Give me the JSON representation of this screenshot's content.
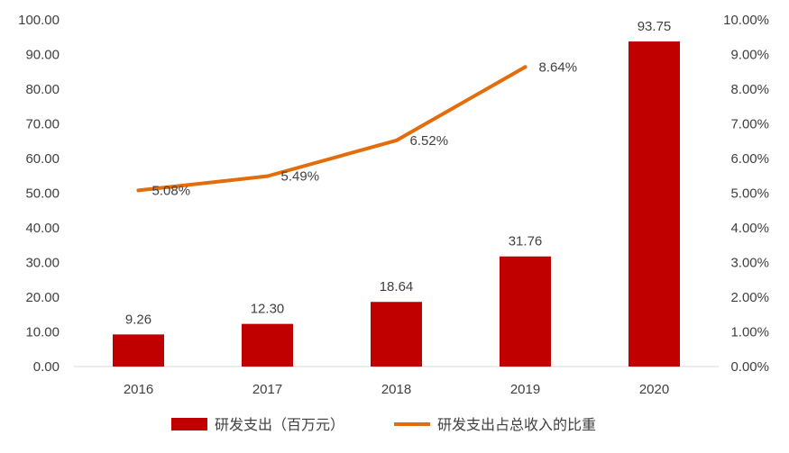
{
  "chart_data": {
    "type": "bar",
    "categories": [
      "2016",
      "2017",
      "2018",
      "2019",
      "2020"
    ],
    "series": [
      {
        "name": "研发支出（百万元）",
        "type": "bar",
        "axis": "left",
        "color": "#C00000",
        "values": [
          9.26,
          12.3,
          18.64,
          31.76,
          93.75
        ],
        "labels": [
          "9.26",
          "12.30",
          "18.64",
          "31.76",
          "93.75"
        ]
      },
      {
        "name": "研发支出占总收入的比重",
        "type": "line",
        "axis": "right",
        "color": "#E46C0A",
        "values": [
          5.08,
          5.49,
          6.52,
          8.64,
          null
        ],
        "labels": [
          "5.08%",
          "5.49%",
          "6.52%",
          "8.64%",
          ""
        ]
      }
    ],
    "y_left": {
      "ylim": [
        0,
        100
      ],
      "ticks": [
        "0.00",
        "10.00",
        "20.00",
        "30.00",
        "40.00",
        "50.00",
        "60.00",
        "70.00",
        "80.00",
        "90.00",
        "100.00"
      ]
    },
    "y_right": {
      "ylim": [
        0,
        10
      ],
      "unit": "%",
      "ticks": [
        "0.00%",
        "1.00%",
        "2.00%",
        "3.00%",
        "4.00%",
        "5.00%",
        "6.00%",
        "7.00%",
        "8.00%",
        "9.00%",
        "10.00%"
      ]
    },
    "grid": false,
    "legend": "bottom"
  }
}
